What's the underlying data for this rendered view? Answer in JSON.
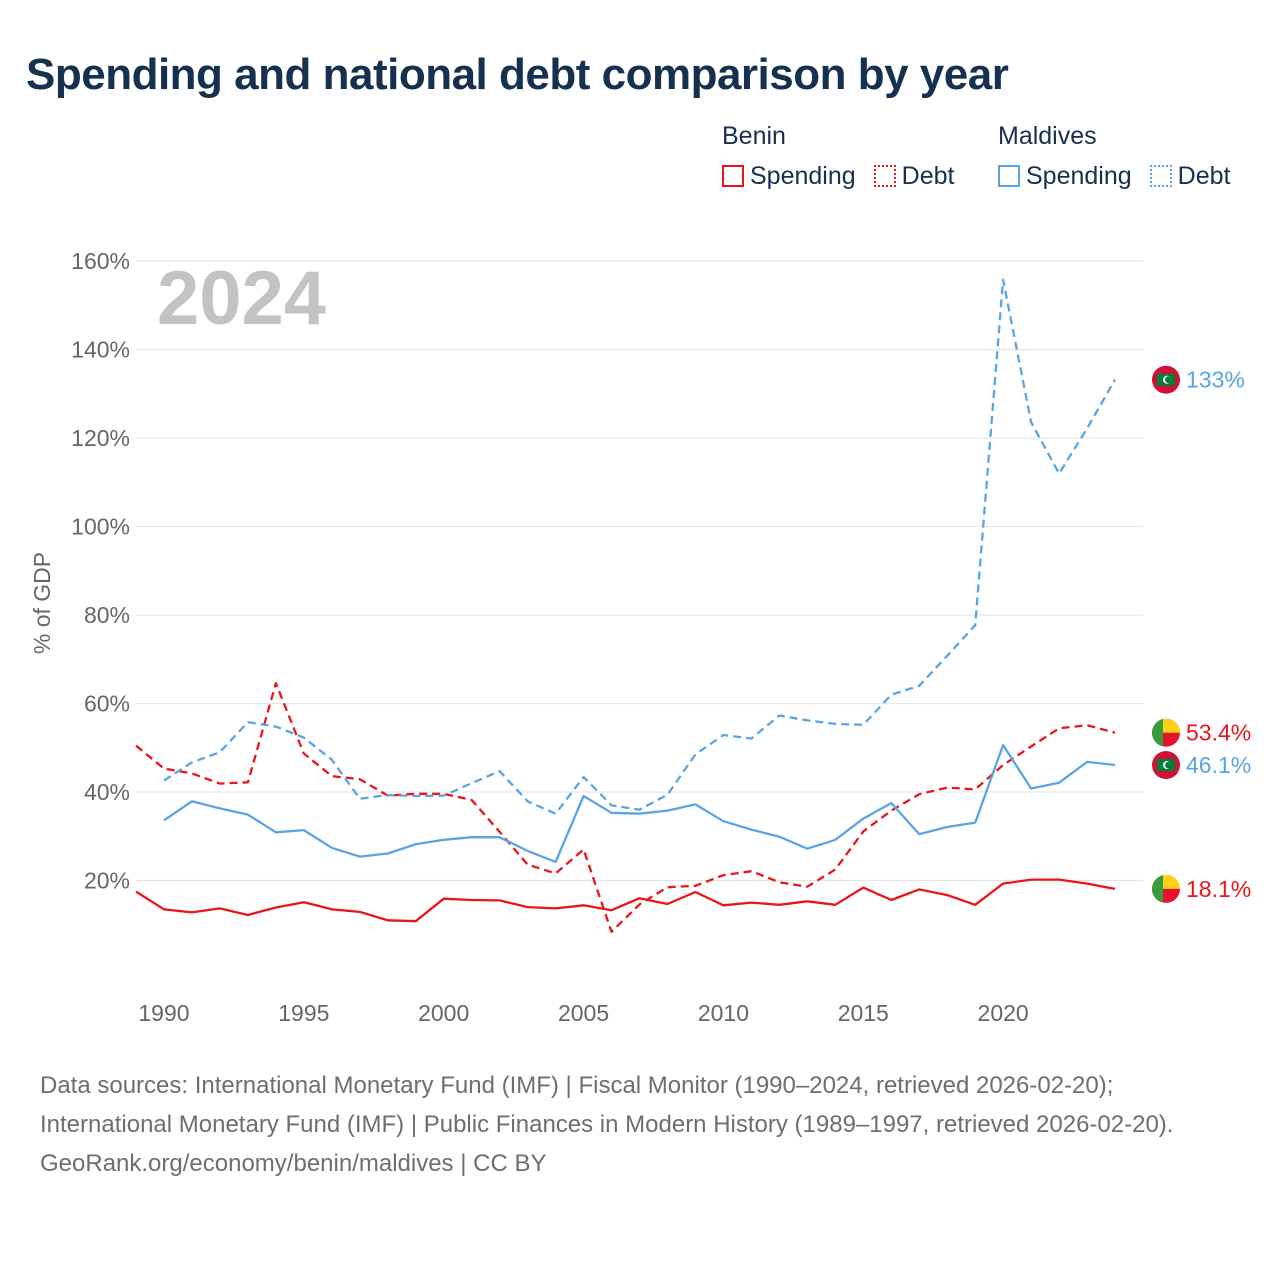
{
  "chart_data": {
    "type": "line",
    "title": "Spending and national debt comparison by year",
    "year_watermark": "2024",
    "ylabel": "% of GDP",
    "xlabel": "",
    "xlim": [
      1989,
      2025
    ],
    "ylim": [
      0,
      165
    ],
    "grid": true,
    "x_ticks": [
      1990,
      1995,
      2000,
      2005,
      2010,
      2015,
      2020
    ],
    "x_tick_labels": [
      "1990",
      "1995",
      "2000",
      "2005",
      "2010",
      "2015",
      "2020"
    ],
    "y_ticks": [
      20,
      40,
      60,
      80,
      100,
      120,
      140,
      160
    ],
    "y_tick_labels": [
      "20%",
      "40%",
      "60%",
      "80%",
      "100%",
      "120%",
      "140%",
      "160%"
    ],
    "legend": {
      "placement": "top-right",
      "groups": [
        {
          "country": "Benin",
          "color": "#e8161b",
          "spending_label": "Spending",
          "debt_label": "Debt"
        },
        {
          "country": "Maldives",
          "color": "#5aa4e4",
          "spending_label": "Spending",
          "debt_label": "Debt"
        }
      ]
    },
    "series": [
      {
        "name": "Benin Spending",
        "country": "Benin",
        "metric": "Spending",
        "color": "#e8161b",
        "dashed": false,
        "end_label": "18.1%",
        "flag": "benin",
        "x": [
          1989,
          1990,
          1991,
          1992,
          1993,
          1994,
          1995,
          1996,
          1997,
          1998,
          1999,
          2000,
          2001,
          2002,
          2003,
          2004,
          2005,
          2006,
          2007,
          2008,
          2009,
          2010,
          2011,
          2012,
          2013,
          2014,
          2015,
          2016,
          2017,
          2018,
          2019,
          2020,
          2021,
          2022,
          2023,
          2024
        ],
        "values": [
          17.5,
          13.5,
          12.8,
          13.7,
          12.2,
          13.9,
          15.1,
          13.5,
          12.9,
          11.0,
          10.8,
          15.9,
          15.6,
          15.5,
          14.0,
          13.7,
          14.4,
          13.3,
          16.0,
          14.7,
          17.4,
          14.4,
          15.0,
          14.5,
          15.3,
          14.5,
          18.4,
          15.6,
          18.0,
          16.7,
          14.5,
          19.3,
          20.2,
          20.2,
          19.3,
          18.1
        ]
      },
      {
        "name": "Benin Debt",
        "country": "Benin",
        "metric": "Debt",
        "color": "#e8161b",
        "dashed": true,
        "end_label": "53.4%",
        "flag": "benin",
        "x": [
          1989,
          1990,
          1991,
          1992,
          1993,
          1994,
          1995,
          1996,
          1997,
          1998,
          1999,
          2000,
          2001,
          2002,
          2003,
          2004,
          2005,
          2006,
          2007,
          2008,
          2009,
          2010,
          2011,
          2012,
          2013,
          2014,
          2015,
          2016,
          2017,
          2018,
          2019,
          2020,
          2021,
          2022,
          2023,
          2024
        ],
        "values": [
          50.5,
          45.3,
          44.2,
          41.9,
          42.2,
          64.6,
          48.7,
          43.6,
          42.9,
          39.2,
          39.6,
          39.6,
          38.2,
          31.0,
          23.6,
          21.6,
          27.0,
          8.4,
          14.6,
          18.5,
          18.8,
          21.2,
          22.1,
          19.6,
          18.6,
          22.5,
          31.1,
          35.8,
          39.5,
          41.0,
          40.6,
          46.1,
          50.3,
          54.4,
          55.1,
          53.4
        ]
      },
      {
        "name": "Maldives Spending",
        "country": "Maldives",
        "metric": "Spending",
        "color": "#5aa4e4",
        "dashed": false,
        "end_label": "46.1%",
        "flag": "maldives",
        "x": [
          1990,
          1991,
          1992,
          1993,
          1994,
          1995,
          1996,
          1997,
          1998,
          1999,
          2000,
          2001,
          2002,
          2003,
          2004,
          2005,
          2006,
          2007,
          2008,
          2009,
          2010,
          2011,
          2012,
          2013,
          2014,
          2015,
          2016,
          2017,
          2018,
          2019,
          2020,
          2021,
          2022,
          2023,
          2024
        ],
        "values": [
          33.6,
          37.9,
          36.3,
          34.9,
          30.9,
          31.4,
          27.4,
          25.4,
          26.1,
          28.2,
          29.2,
          29.8,
          29.8,
          26.7,
          24.2,
          39.1,
          35.3,
          35.1,
          35.8,
          37.2,
          33.4,
          31.5,
          29.9,
          27.2,
          29.2,
          34.0,
          37.5,
          30.5,
          32.1,
          33.1,
          50.6,
          40.8,
          42.1,
          46.8,
          46.1
        ]
      },
      {
        "name": "Maldives Debt",
        "country": "Maldives",
        "metric": "Debt",
        "color": "#5aa4e4",
        "dashed": true,
        "end_label": "133%",
        "flag": "maldives",
        "x": [
          1990,
          1991,
          1992,
          1993,
          1994,
          1995,
          1996,
          1997,
          1998,
          1999,
          2000,
          2001,
          2002,
          2003,
          2004,
          2005,
          2006,
          2007,
          2008,
          2009,
          2010,
          2011,
          2012,
          2013,
          2014,
          2015,
          2016,
          2017,
          2018,
          2019,
          2020,
          2021,
          2022,
          2023,
          2024
        ],
        "values": [
          42.6,
          46.7,
          49.0,
          55.8,
          54.8,
          52.3,
          47.3,
          38.5,
          39.3,
          39.1,
          39.2,
          42.0,
          44.7,
          37.9,
          35.1,
          43.4,
          37.0,
          36.0,
          39.4,
          48.5,
          52.9,
          52.1,
          57.3,
          56.2,
          55.4,
          55.2,
          62.0,
          64.0,
          70.8,
          77.7,
          155.8,
          123.6,
          112.0,
          122.2,
          133.2
        ]
      }
    ]
  },
  "footer": {
    "sources": "Data sources: International Monetary Fund (IMF) | Fiscal Monitor (1990–2024, retrieved 2026-02-20); International Monetary Fund (IMF) | Public Finances in Modern History (1989–1997, retrieved 2026-02-20).",
    "attribution": "GeoRank.org/economy/benin/maldives | CC BY"
  }
}
